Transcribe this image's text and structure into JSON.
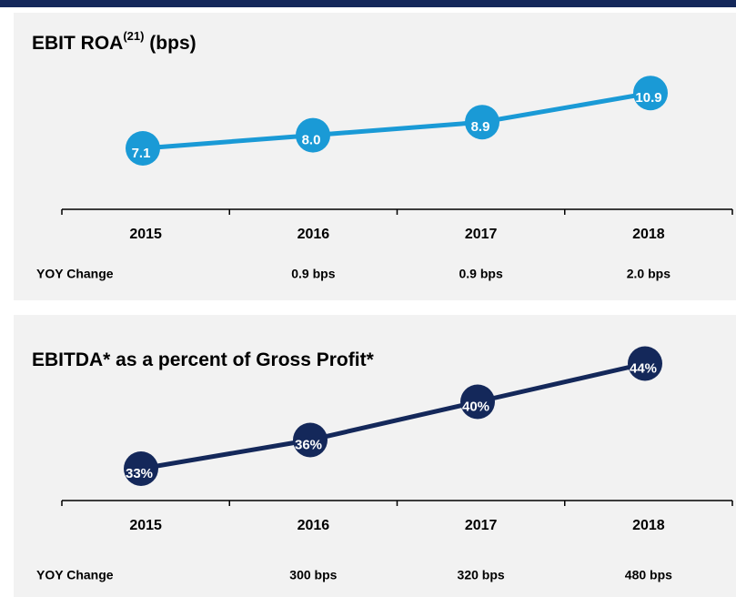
{
  "charts": [
    {
      "chart_data": {
        "type": "line",
        "title": "EBIT ROA",
        "title_superscript": "(21)",
        "title_suffix": "(bps)",
        "categories": [
          "2015",
          "2016",
          "2017",
          "2018"
        ],
        "values": [
          7.1,
          8.0,
          8.9,
          10.9
        ],
        "value_labels": [
          "7.1",
          "8.0",
          "8.9",
          "10.9"
        ],
        "color": "#1a9ad6",
        "row_label": "YOY Change",
        "row_values": [
          null,
          "0.9 bps",
          "0.9 bps",
          "2.0 bps"
        ]
      }
    },
    {
      "chart_data": {
        "type": "line",
        "title": "EBITDA* as a percent of Gross Profit*",
        "categories": [
          "2015",
          "2016",
          "2017",
          "2018"
        ],
        "values": [
          33,
          36,
          40,
          44
        ],
        "value_labels": [
          "33%",
          "36%",
          "40%",
          "44%"
        ],
        "color": "#14285a",
        "row_label": "YOY Change",
        "row_values": [
          null,
          "300 bps",
          "320 bps",
          "480 bps"
        ]
      }
    }
  ]
}
